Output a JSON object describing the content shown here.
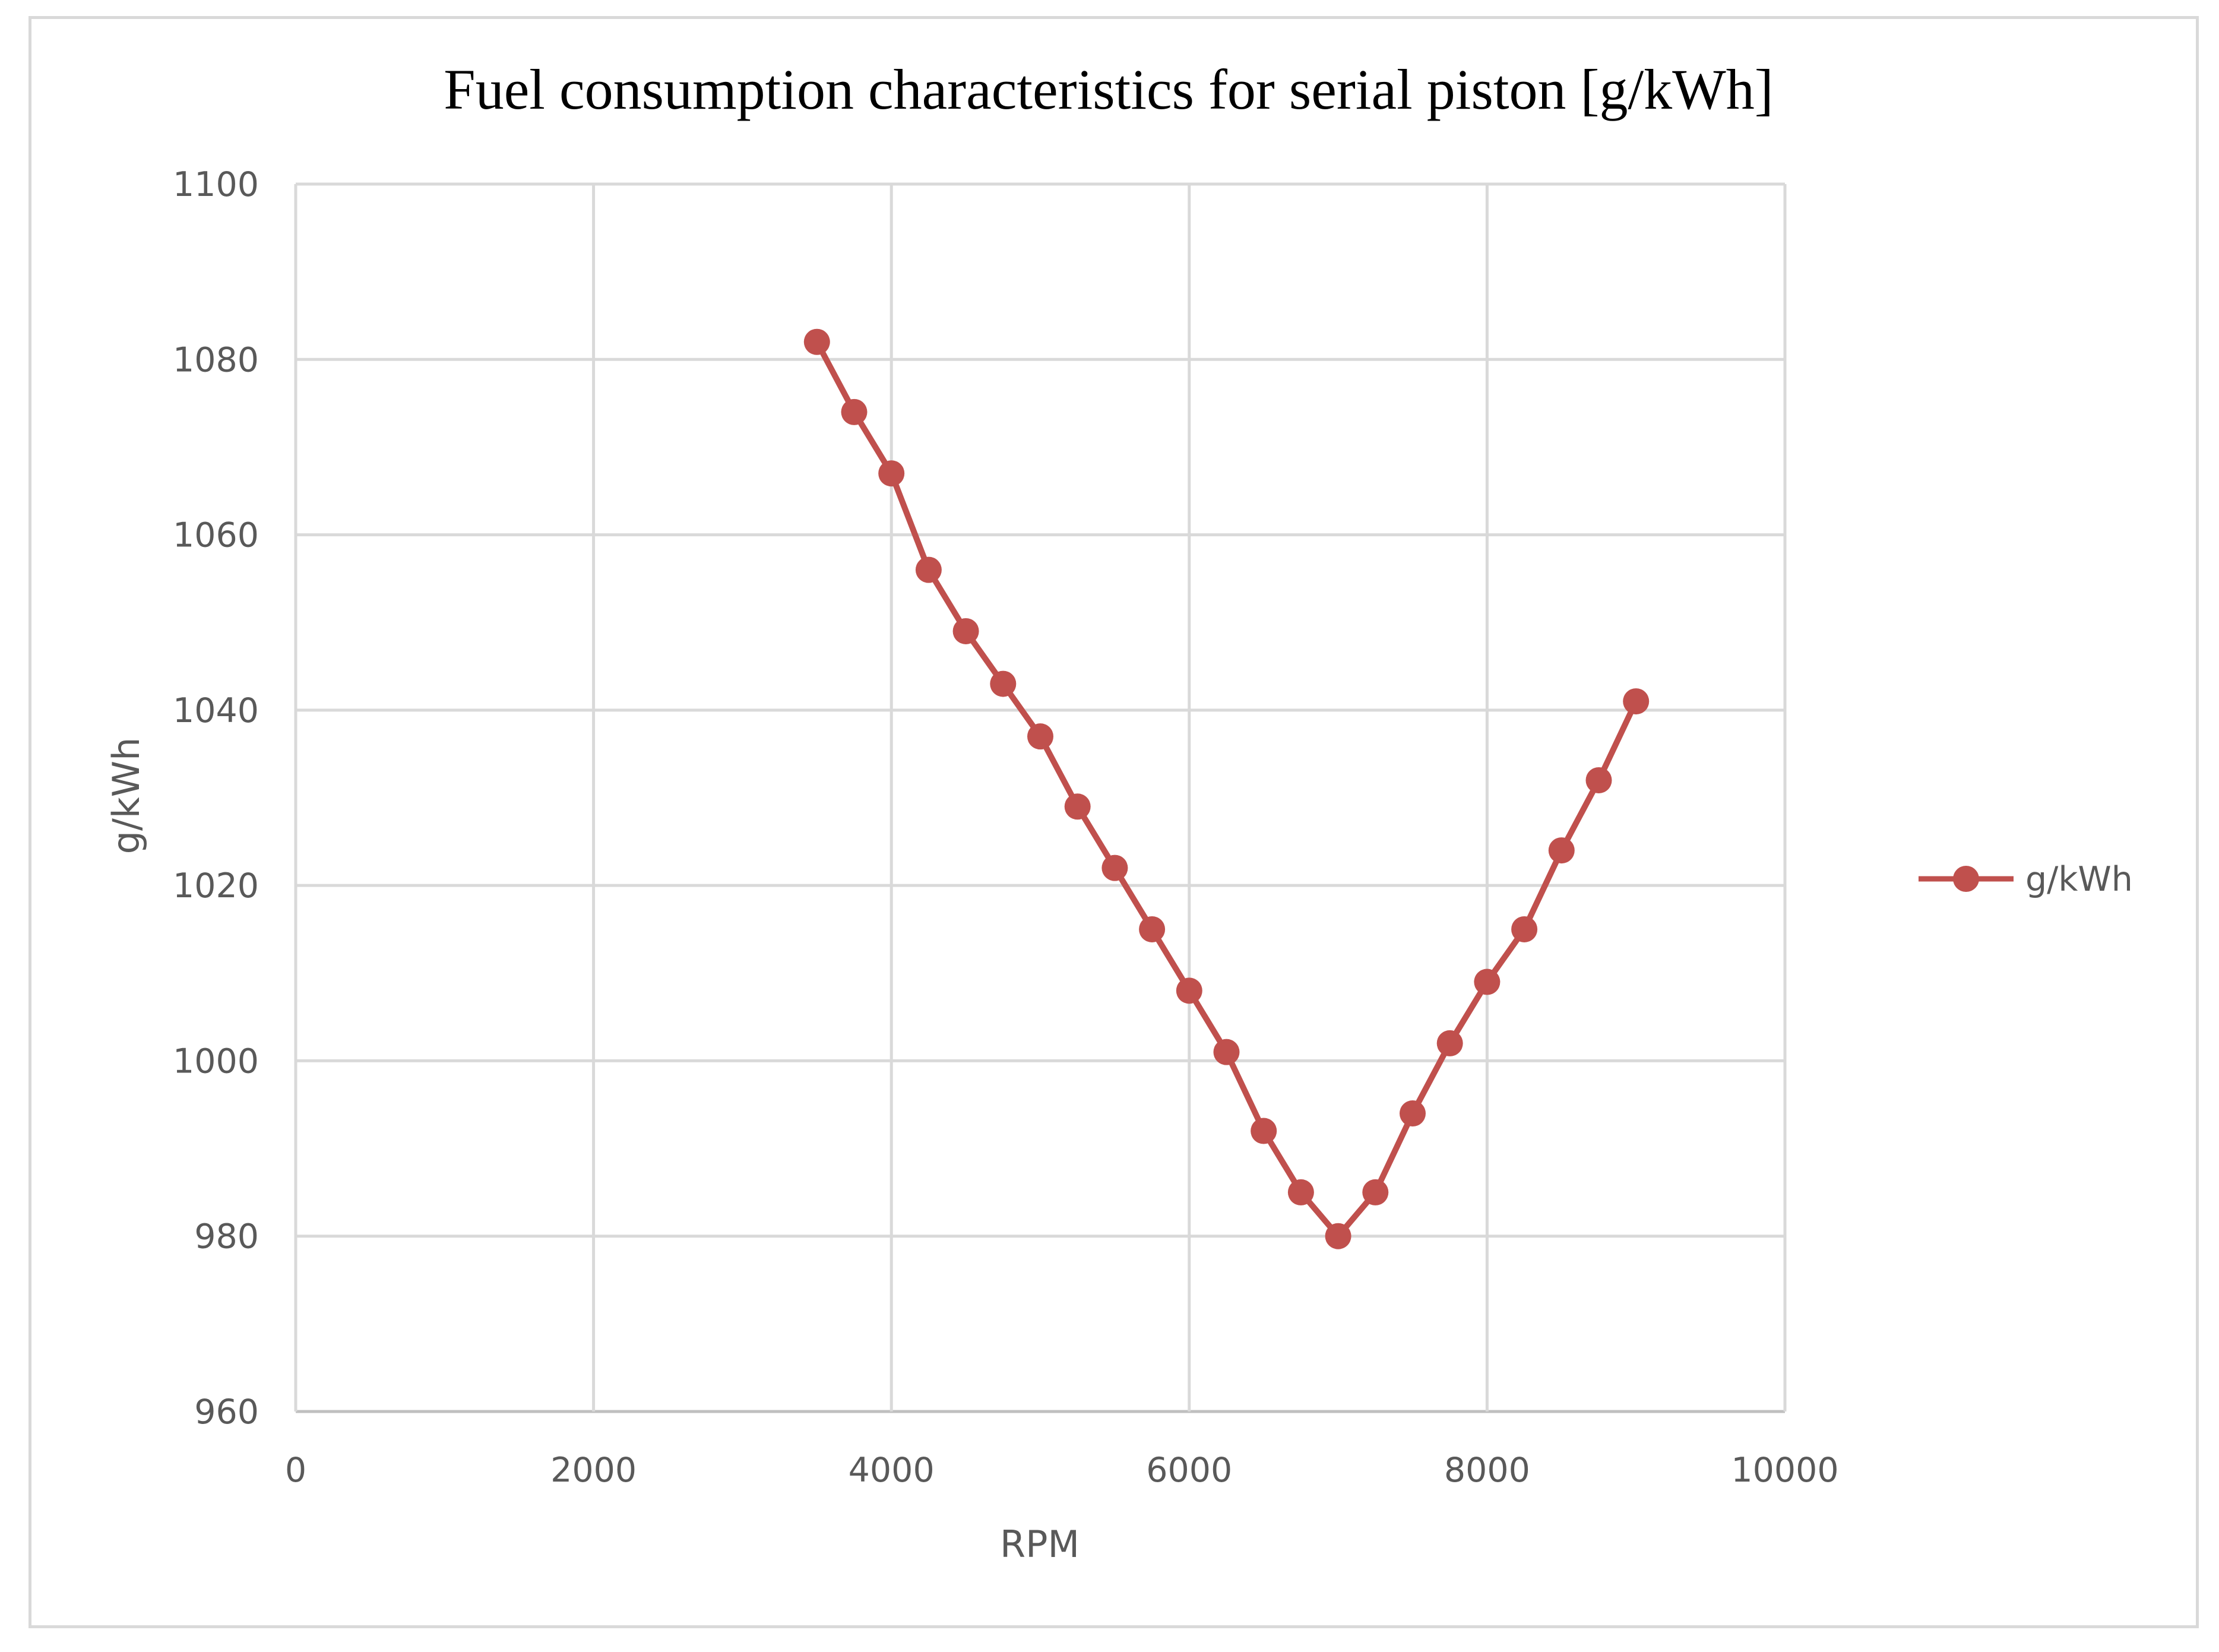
{
  "chart_data": {
    "type": "scatter",
    "title": "Fuel consumption characteristics for serial piston [g/kWh]",
    "xlabel": "RPM",
    "ylabel": "g/kWh",
    "xlim": [
      0,
      10000
    ],
    "ylim": [
      960,
      1100
    ],
    "xticks": [
      0,
      2000,
      4000,
      6000,
      8000,
      10000
    ],
    "yticks": [
      960,
      980,
      1000,
      1020,
      1040,
      1060,
      1080,
      1100
    ],
    "grid": true,
    "legend_position": "right",
    "series": [
      {
        "name": "g/kWh",
        "color": "#c0504d",
        "marker": "circle",
        "line": "straight",
        "x": [
          3500,
          3750,
          4000,
          4250,
          4500,
          4750,
          5000,
          5250,
          5500,
          5750,
          6000,
          6250,
          6500,
          6750,
          7000,
          7250,
          7500,
          7750,
          8000,
          8250,
          8500,
          8750,
          9000
        ],
        "y": [
          1082,
          1074,
          1067,
          1056,
          1049,
          1043,
          1037,
          1029,
          1022,
          1015,
          1008,
          1001,
          992,
          985,
          980,
          985,
          994,
          1002,
          1009,
          1015,
          1024,
          1032,
          1041
        ]
      }
    ]
  }
}
